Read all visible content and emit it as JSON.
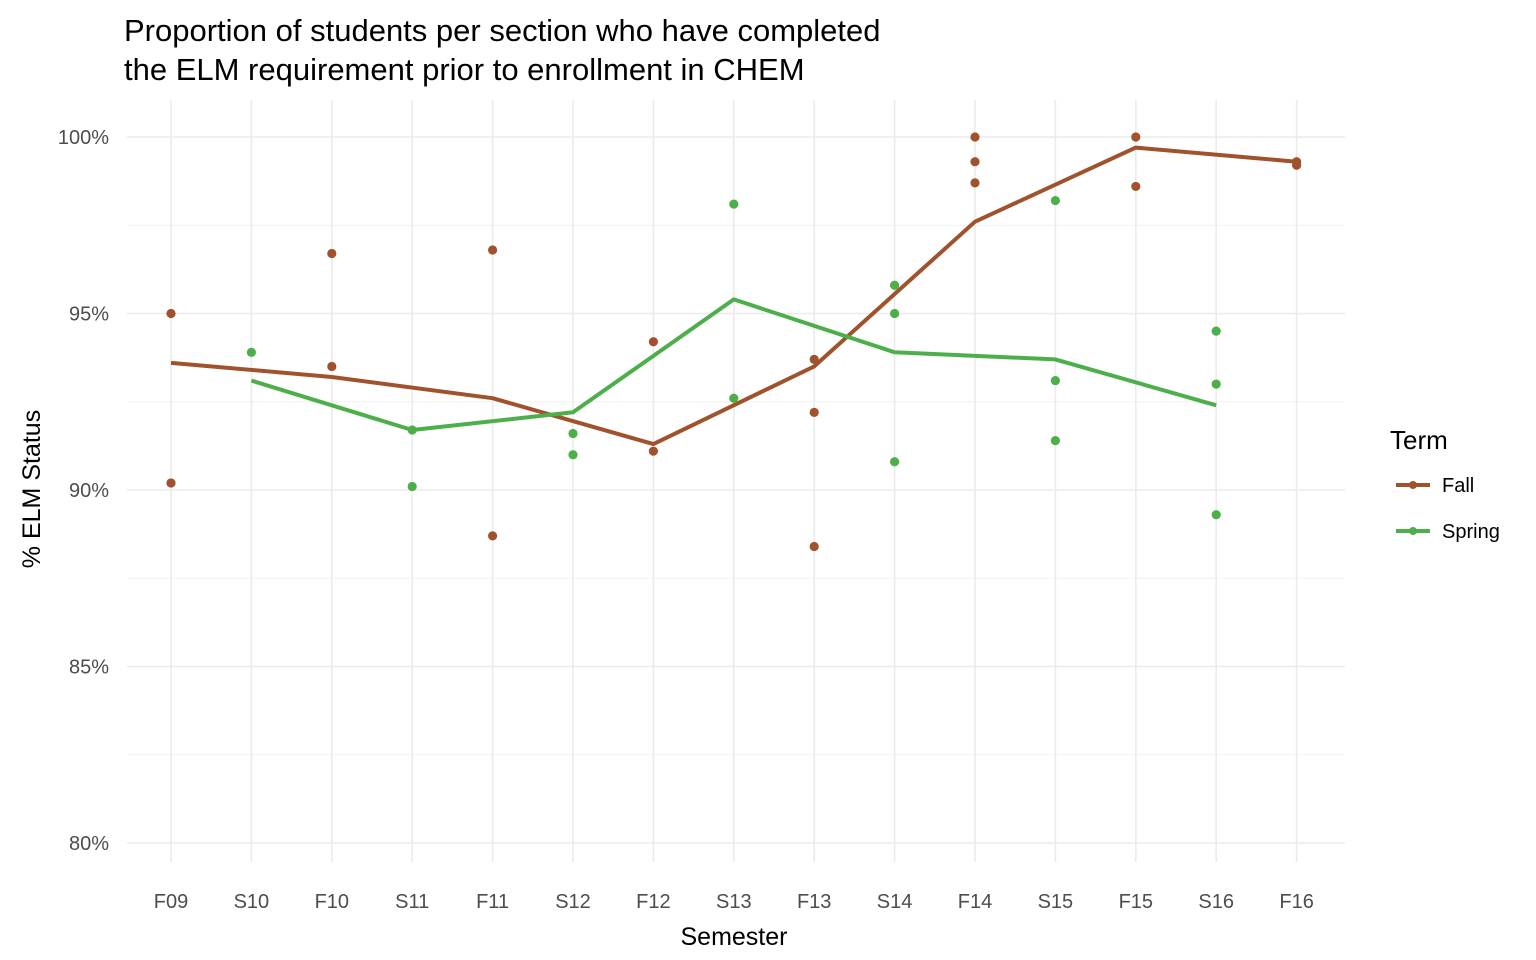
{
  "chart_data": {
    "type": "line",
    "title_lines": [
      "Proportion of students per section who have completed",
      "the ELM requirement prior to enrollment in CHEM"
    ],
    "xlabel": "Semester",
    "ylabel": "% ELM Status",
    "categories": [
      "F09",
      "S10",
      "F10",
      "S11",
      "F11",
      "S12",
      "F12",
      "S13",
      "F13",
      "S14",
      "F14",
      "S15",
      "F15",
      "S16",
      "F16"
    ],
    "yticks": [
      80,
      85,
      90,
      95,
      100
    ],
    "ytick_labels": [
      "80%",
      "85%",
      "90%",
      "95%",
      "100%"
    ],
    "ylim": [
      79.1,
      101.0
    ],
    "grid": true,
    "legend": {
      "title": "Term",
      "placement": "right",
      "entries": [
        "Fall",
        "Spring"
      ]
    },
    "series": [
      {
        "name": "Fall",
        "color": "#a0522d",
        "points": [
          {
            "x": "F09",
            "y": 95.0
          },
          {
            "x": "F09",
            "y": 90.2
          },
          {
            "x": "F10",
            "y": 96.7
          },
          {
            "x": "F10",
            "y": 93.5
          },
          {
            "x": "F11",
            "y": 96.8
          },
          {
            "x": "F11",
            "y": 88.7
          },
          {
            "x": "F12",
            "y": 94.2
          },
          {
            "x": "F12",
            "y": 91.1
          },
          {
            "x": "F13",
            "y": 93.7
          },
          {
            "x": "F13",
            "y": 92.2
          },
          {
            "x": "F13",
            "y": 88.4
          },
          {
            "x": "F14",
            "y": 100.0
          },
          {
            "x": "F14",
            "y": 99.3
          },
          {
            "x": "F14",
            "y": 98.7
          },
          {
            "x": "F15",
            "y": 100.0
          },
          {
            "x": "F15",
            "y": 98.6
          },
          {
            "x": "F16",
            "y": 99.3
          },
          {
            "x": "F16",
            "y": 99.2
          }
        ],
        "line": [
          {
            "x": "F09",
            "y": 93.6
          },
          {
            "x": "F10",
            "y": 93.2
          },
          {
            "x": "F11",
            "y": 92.6
          },
          {
            "x": "F12",
            "y": 91.3
          },
          {
            "x": "F13",
            "y": 93.5
          },
          {
            "x": "F14",
            "y": 97.6
          },
          {
            "x": "F15",
            "y": 99.7
          },
          {
            "x": "F16",
            "y": 99.3
          }
        ]
      },
      {
        "name": "Spring",
        "color": "#4daf4a",
        "points": [
          {
            "x": "S10",
            "y": 93.9
          },
          {
            "x": "S11",
            "y": 91.7
          },
          {
            "x": "S11",
            "y": 90.1
          },
          {
            "x": "S12",
            "y": 91.6
          },
          {
            "x": "S12",
            "y": 91.0
          },
          {
            "x": "S13",
            "y": 98.1
          },
          {
            "x": "S13",
            "y": 92.6
          },
          {
            "x": "S14",
            "y": 95.8
          },
          {
            "x": "S14",
            "y": 95.0
          },
          {
            "x": "S14",
            "y": 90.8
          },
          {
            "x": "S15",
            "y": 98.2
          },
          {
            "x": "S15",
            "y": 93.1
          },
          {
            "x": "S15",
            "y": 91.4
          },
          {
            "x": "S16",
            "y": 94.5
          },
          {
            "x": "S16",
            "y": 93.0
          },
          {
            "x": "S16",
            "y": 89.3
          }
        ],
        "line": [
          {
            "x": "S10",
            "y": 93.1
          },
          {
            "x": "S11",
            "y": 91.7
          },
          {
            "x": "S12",
            "y": 92.2
          },
          {
            "x": "S13",
            "y": 95.4
          },
          {
            "x": "S14",
            "y": 93.9
          },
          {
            "x": "S15",
            "y": 93.7
          },
          {
            "x": "S16",
            "y": 92.4
          }
        ]
      }
    ]
  }
}
